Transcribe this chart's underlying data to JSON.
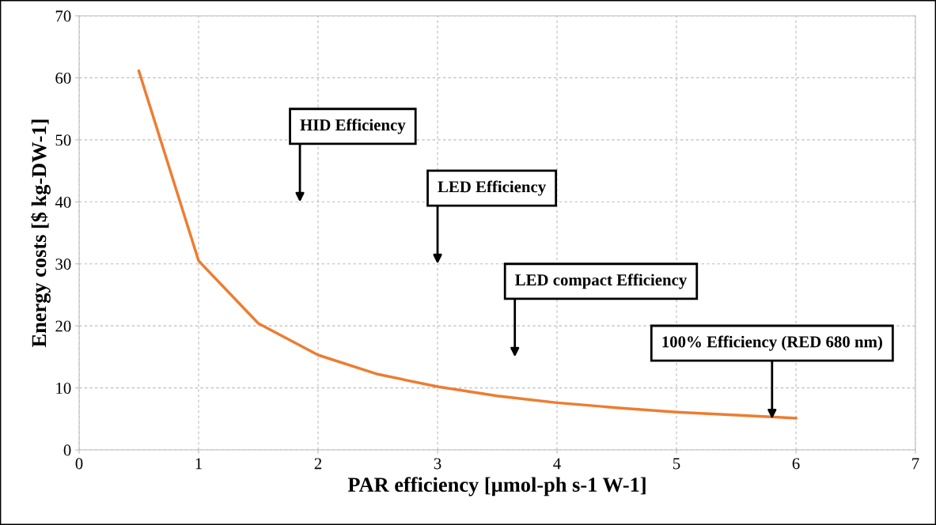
{
  "chart_data": {
    "type": "line",
    "xlabel": "PAR efficiency [µmol-ph s-1 W-1]",
    "ylabel": "Energy costs [$ kg-DW-1]",
    "x": [
      0.5,
      1,
      1.5,
      2,
      2.5,
      3,
      3.5,
      4,
      4.5,
      5,
      5.5,
      6
    ],
    "series": [
      {
        "color": "#ed7d31",
        "values": [
          61.1,
          30.5,
          20.4,
          15.3,
          12.2,
          10.2,
          8.7,
          7.6,
          6.8,
          6.1,
          5.6,
          5.1
        ]
      }
    ],
    "xlim": [
      0,
      7
    ],
    "xticks": [
      0,
      1,
      2,
      3,
      4,
      5,
      6,
      7
    ],
    "ylim": [
      0,
      70
    ],
    "yticks": [
      0,
      10,
      20,
      30,
      40,
      50,
      60,
      70
    ],
    "grid": true,
    "marker": "none",
    "line_style": "solid",
    "annotations": [
      "HID Efficiency",
      "LED Efficiency",
      "LED compact Efficiency",
      {
        "text": "100% Efficiency (RED 680 nm)",
        "x": 5.8,
        "y": 5
      }
    ]
  }
}
